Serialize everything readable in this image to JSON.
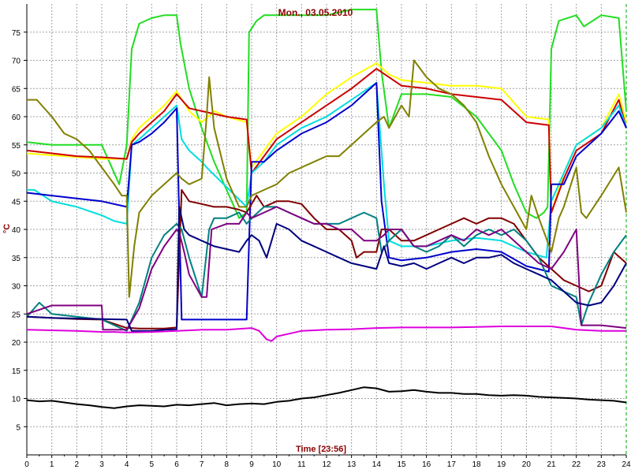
{
  "chart_data": {
    "type": "line",
    "title": "Mon., 03.05.2010",
    "xlabel": "Time [23:56]",
    "ylabel": "°C",
    "xlim": [
      0,
      24
    ],
    "ylim": [
      0,
      80
    ],
    "x_ticks": [
      "0",
      "1",
      "2",
      "3",
      "4",
      "5",
      "6",
      "7",
      "8",
      "9",
      "10",
      "11",
      "12",
      "13",
      "14",
      "15",
      "16",
      "17",
      "18",
      "19",
      "20",
      "21",
      "22",
      "23",
      "24"
    ],
    "y_ticks": [
      "5",
      "10",
      "15",
      "20",
      "25",
      "30",
      "35",
      "40",
      "45",
      "50",
      "55",
      "60",
      "65",
      "70",
      "75"
    ],
    "grid": true,
    "series": [
      {
        "color": "#22dd22",
        "x": [
          0,
          1,
          2,
          3,
          3.7,
          4.0,
          4.2,
          4.5,
          5,
          5.5,
          6.0,
          6.15,
          6.5,
          7,
          7.5,
          8,
          8.5,
          8.8,
          8.9,
          9.2,
          9.5,
          10,
          11,
          12,
          13,
          14.0,
          14.2,
          14.5,
          15,
          16,
          17,
          18,
          19,
          19.5,
          20,
          20.4,
          20.7,
          20.85,
          21,
          21.3,
          22,
          22.3,
          23,
          23.7,
          24
        ],
        "y": [
          55.5,
          55,
          55,
          55,
          48,
          55,
          72,
          76.5,
          77.5,
          78,
          78,
          73,
          65,
          58,
          52,
          47,
          42,
          43,
          75,
          77,
          78,
          78,
          78,
          78,
          79,
          79,
          68,
          58,
          64,
          64,
          63.5,
          60,
          54,
          48,
          43,
          42,
          43,
          44,
          72,
          77,
          78,
          76,
          78,
          77.5,
          61
        ]
      },
      {
        "color": "#ffff00",
        "x": [
          0,
          3,
          4,
          4.2,
          4.5,
          5,
          5.5,
          6,
          6.5,
          7,
          7.5,
          8,
          8.8,
          9,
          9.5,
          10,
          11,
          12,
          13,
          14,
          14.5,
          15,
          16,
          17,
          18,
          19,
          20,
          20.9,
          21,
          21.5,
          22,
          23,
          23.7,
          24
        ],
        "y": [
          53.5,
          52.5,
          52.5,
          56,
          58,
          60,
          62,
          64.5,
          61,
          59,
          61,
          60,
          59,
          51,
          54,
          57,
          60,
          64,
          67,
          69.5,
          67.5,
          66.5,
          66,
          65.5,
          65.5,
          65,
          60,
          59.5,
          43,
          50,
          55,
          58,
          64,
          59
        ]
      },
      {
        "color": "#cc0000",
        "x": [
          0,
          2,
          3,
          4,
          4.2,
          4.5,
          5,
          5.5,
          6,
          6.5,
          7,
          8,
          8.8,
          9,
          9.5,
          10,
          11,
          12,
          13,
          14,
          14.5,
          15,
          16,
          17,
          18,
          19,
          20,
          20.9,
          21,
          21.5,
          22,
          23,
          23.7,
          24
        ],
        "y": [
          54,
          53,
          52.8,
          52.5,
          55.5,
          57,
          59,
          61,
          64,
          61.5,
          61,
          60,
          59.5,
          50,
          53,
          56,
          59,
          62,
          65,
          68.5,
          67,
          65.5,
          65,
          64,
          63.5,
          63,
          59,
          58.5,
          43,
          49,
          54,
          57,
          63,
          58
        ]
      },
      {
        "color": "#00dddd",
        "x": [
          0,
          0.3,
          1,
          2,
          3,
          3.5,
          4,
          4.2,
          4.5,
          5,
          5.5,
          6,
          6.2,
          6.5,
          7,
          7.2,
          8.8,
          9,
          9.5,
          10,
          11,
          12,
          13,
          14,
          14.1,
          14.3,
          14.5,
          15,
          16,
          17,
          18,
          19,
          20,
          20.8,
          21,
          21.5,
          22,
          23,
          23.7,
          24
        ],
        "y": [
          47,
          47,
          45,
          44,
          42.5,
          41.5,
          41,
          55,
          56,
          58,
          60,
          62,
          56,
          54,
          52,
          51,
          44,
          50,
          52,
          55,
          58,
          60,
          63,
          66,
          60,
          48,
          38,
          37,
          37,
          38,
          38.5,
          38,
          36,
          35,
          45,
          50,
          55,
          58,
          62,
          58
        ]
      },
      {
        "color": "#0000cc",
        "x": [
          0,
          1,
          2,
          3,
          4,
          4.2,
          4.5,
          5,
          5.5,
          6,
          6.2,
          8.8,
          9,
          9.5,
          10,
          11,
          12,
          13,
          14,
          14.2,
          14.5,
          15,
          16,
          17,
          18,
          19,
          20,
          20.9,
          21,
          21.5,
          22,
          23,
          23.7,
          24
        ],
        "y": [
          46.5,
          46,
          45.5,
          45,
          44,
          55,
          55.5,
          57,
          59,
          61.5,
          24,
          24,
          52,
          52,
          54,
          57,
          59,
          62,
          66,
          45,
          35,
          34.5,
          35,
          36,
          36.5,
          36,
          33.5,
          32.5,
          48,
          48,
          53,
          57,
          61,
          58
        ]
      },
      {
        "color": "#808000",
        "x": [
          0,
          0.4,
          1,
          1.5,
          2,
          2.5,
          3,
          3.5,
          3.8,
          4.0,
          4.1,
          4.3,
          4.5,
          5,
          5.5,
          6,
          6.2,
          6.5,
          7,
          7.2,
          7.3,
          7.5,
          8,
          8.5,
          8.8,
          9,
          9.5,
          10,
          10.5,
          11,
          11.5,
          12,
          12.5,
          13,
          13.5,
          14,
          14.3,
          14.5,
          15,
          15.3,
          15.5,
          16,
          16.5,
          17,
          17.5,
          18,
          18.5,
          19,
          19.5,
          20,
          20.2,
          20.5,
          21,
          21.3,
          21.5,
          22,
          22.2,
          22.4,
          23,
          23.7,
          24
        ],
        "y": [
          63,
          63,
          60,
          57,
          56,
          54,
          51,
          48,
          46,
          46,
          28,
          37,
          43,
          46,
          48,
          50,
          49,
          48,
          49,
          60,
          67,
          58,
          49,
          44,
          44,
          46,
          47,
          48,
          50,
          51,
          52,
          53,
          53,
          55,
          57,
          59,
          60,
          58,
          62,
          60,
          70,
          67,
          65,
          64,
          62,
          59,
          53,
          48,
          44,
          40,
          46,
          42,
          36,
          42,
          44,
          51,
          43,
          42,
          46,
          51,
          43
        ]
      },
      {
        "color": "#800000",
        "x": [
          0,
          1,
          2,
          3,
          4,
          4.2,
          4.5,
          5,
          5.5,
          6,
          6.2,
          6.5,
          7,
          7.5,
          8,
          8.5,
          8.8,
          9,
          9.2,
          9.5,
          10,
          10.5,
          11,
          11.5,
          12,
          12.5,
          13,
          13.2,
          13.5,
          14,
          14.2,
          14.5,
          15,
          15.5,
          16,
          16.5,
          17,
          17.5,
          18,
          18.5,
          19,
          19.5,
          20,
          20.5,
          21,
          21.5,
          22,
          22.5,
          23,
          23.5,
          24
        ],
        "y": [
          24.5,
          24.3,
          24.1,
          24,
          22.5,
          22.5,
          22.4,
          22.4,
          22.4,
          22.6,
          47,
          45,
          44.5,
          44,
          44,
          43.5,
          43,
          44.5,
          46,
          44,
          45,
          45,
          44.5,
          42,
          40,
          40,
          38,
          35,
          36,
          36,
          40,
          40,
          38,
          38,
          39,
          40,
          41,
          42,
          41,
          42,
          42,
          41,
          38,
          35,
          33,
          31,
          30,
          29,
          30,
          36,
          34
        ]
      },
      {
        "color": "#008080",
        "x": [
          0,
          0.5,
          1,
          2,
          3,
          4,
          4.5,
          5,
          5.5,
          6,
          6.2,
          6.5,
          7,
          7.3,
          7.5,
          8,
          8.5,
          8.8,
          9,
          9.5,
          10,
          10.5,
          11,
          11.5,
          12,
          12.5,
          13,
          13.5,
          14,
          14.2,
          14.5,
          15,
          15.5,
          16,
          16.5,
          17,
          17.5,
          18,
          18.5,
          19,
          19.5,
          20,
          20.5,
          21,
          21.5,
          22,
          22.2,
          22.5,
          23,
          23.5,
          24
        ],
        "y": [
          24.5,
          27,
          25,
          24.5,
          24,
          22,
          27,
          35,
          39,
          41,
          40,
          35,
          28,
          40,
          42,
          42,
          43,
          41,
          42,
          44,
          44,
          43,
          42,
          41,
          41,
          41,
          42,
          43,
          42,
          36,
          38,
          40,
          37,
          36,
          37,
          39,
          37,
          39,
          40,
          39,
          40,
          38,
          35,
          30,
          29,
          28,
          23,
          27,
          32,
          36,
          39
        ]
      },
      {
        "color": "#800080",
        "x": [
          0,
          1,
          2,
          3,
          3.05,
          4,
          4.5,
          5,
          5.5,
          6,
          6.1,
          6.3,
          6.5,
          7,
          7.2,
          7.4,
          8,
          8.5,
          8.8,
          9,
          9.5,
          10,
          10.5,
          11,
          11.5,
          12,
          12.5,
          13,
          13.5,
          14,
          14.3,
          14.5,
          15,
          15.5,
          16,
          16.5,
          17,
          17.5,
          18,
          18.5,
          19,
          19.5,
          20,
          20.5,
          21,
          21.5,
          22,
          22.2,
          22.5,
          23,
          24
        ],
        "y": [
          25,
          26.5,
          26.5,
          26.5,
          22.2,
          22.2,
          26,
          33,
          37,
          40,
          39.5,
          36,
          32,
          28,
          28,
          40,
          41,
          41,
          43,
          42,
          43,
          44,
          43,
          42,
          41,
          41,
          40,
          40,
          38,
          38,
          39,
          40,
          40,
          37,
          37,
          38,
          39,
          38,
          40,
          39,
          40,
          38,
          36,
          34,
          33,
          36,
          40,
          23,
          23,
          23,
          22.5
        ]
      },
      {
        "color": "#000080",
        "x": [
          0,
          1,
          2,
          3,
          4,
          4.2,
          5,
          5.5,
          6,
          6.1,
          6.3,
          6.5,
          7,
          7.5,
          8,
          8.5,
          8.8,
          9,
          9.3,
          9.6,
          10,
          10.5,
          11,
          11.5,
          12,
          12.5,
          13,
          13.5,
          14,
          14.3,
          14.5,
          15,
          15.5,
          16,
          16.5,
          17,
          17.5,
          18,
          18.5,
          19,
          19.5,
          20,
          20.5,
          21,
          21.5,
          22,
          22.5,
          23,
          23.5,
          24
        ],
        "y": [
          24.5,
          24.3,
          24.2,
          24.1,
          24,
          22,
          22,
          22.2,
          22.3,
          44,
          40,
          39,
          38,
          37,
          36.5,
          36,
          38,
          39,
          38,
          35,
          41,
          40,
          38,
          37,
          36,
          35,
          34,
          33.5,
          33,
          37,
          34,
          33.5,
          34,
          33,
          34,
          35,
          34,
          35,
          35,
          35.5,
          34,
          33,
          32,
          31,
          29,
          27,
          26.5,
          27,
          30,
          34
        ]
      },
      {
        "color": "#dd00dd",
        "x": [
          0,
          2,
          3,
          3.5,
          4,
          5,
          6,
          7,
          8,
          9,
          9.3,
          9.6,
          9.8,
          10,
          10.5,
          11,
          12,
          13,
          14,
          15,
          16,
          17,
          18,
          19,
          20,
          21,
          21.5,
          22,
          23,
          24
        ],
        "y": [
          22.2,
          22,
          21.8,
          21.8,
          21.7,
          21.8,
          22,
          22.2,
          22.2,
          22.5,
          22,
          20.5,
          20.2,
          21,
          21.5,
          22,
          22.2,
          22.3,
          22.5,
          22.6,
          22.6,
          22.6,
          22.7,
          22.8,
          22.8,
          22.8,
          22.5,
          22.2,
          22,
          22
        ]
      },
      {
        "color": "#000000",
        "x": [
          0,
          0.5,
          1,
          1.5,
          2,
          2.5,
          3,
          3.5,
          4,
          4.5,
          5,
          5.5,
          6,
          6.5,
          7,
          7.5,
          8,
          8.5,
          9,
          9.5,
          10,
          10.5,
          11,
          11.5,
          12,
          12.5,
          13,
          13.5,
          14,
          14.5,
          15,
          15.5,
          16,
          16.5,
          17,
          17.5,
          18,
          18.5,
          19,
          19.5,
          20,
          20.5,
          21,
          21.5,
          22,
          22.5,
          23,
          23.5,
          24
        ],
        "y": [
          9.7,
          9.5,
          9.6,
          9.3,
          9,
          8.8,
          8.5,
          8.3,
          8.6,
          8.8,
          8.7,
          8.6,
          8.9,
          8.8,
          9,
          9.2,
          8.8,
          9,
          9.1,
          9,
          9.4,
          9.6,
          10,
          10.2,
          10.6,
          11,
          11.5,
          12,
          11.8,
          11.2,
          11.3,
          11.5,
          11.2,
          11,
          11,
          10.8,
          10.8,
          10.6,
          10.5,
          10.6,
          10.5,
          10.3,
          10.2,
          10.1,
          10,
          9.8,
          9.7,
          9.6,
          9.3
        ]
      }
    ]
  }
}
